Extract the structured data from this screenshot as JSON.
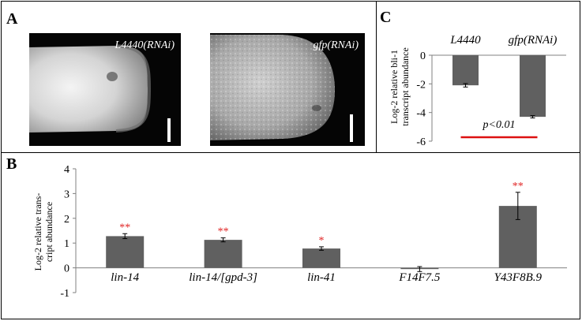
{
  "panels": {
    "a": {
      "letter": "A",
      "images": [
        {
          "label": "L4440(RNAi)"
        },
        {
          "label": "gfp(RNAi)"
        }
      ]
    },
    "b": {
      "letter": "B"
    },
    "c": {
      "letter": "C"
    }
  },
  "colors": {
    "bar": "#606060",
    "significance": "#e02020",
    "pvalue_line": "#dd1111",
    "axis": "#808080"
  },
  "chart_data": [
    {
      "panel": "C",
      "type": "bar",
      "categories": [
        "L4440",
        "gfp(RNAi)"
      ],
      "values": [
        -2.1,
        -4.3
      ],
      "errors": [
        0.12,
        0.08
      ],
      "ylabel": "Log-2 relative bli-1 transcript abundance",
      "ylabel_lines": [
        "Log-2 relative bli-1",
        "transcript abundance"
      ],
      "yticks": [
        0,
        -2,
        -4,
        -6
      ],
      "ylim": [
        -6,
        0
      ],
      "annotation": "p<0.01",
      "grid": false
    },
    {
      "panel": "B",
      "type": "bar",
      "categories": [
        "lin-14",
        "lin-14/[gpd-3]",
        "lin-41",
        "F14F7.5",
        "Y43F8B.9"
      ],
      "values": [
        1.28,
        1.13,
        0.78,
        -0.05,
        2.5
      ],
      "errors": [
        0.1,
        0.08,
        0.07,
        0.1,
        0.55
      ],
      "significance": [
        "**",
        "**",
        "*",
        "",
        "**"
      ],
      "ylabel": "Log-2 relative transcript abundance",
      "ylabel_lines": [
        "Log-2 relative trans-",
        "cript abundance"
      ],
      "yticks": [
        -1,
        0,
        1,
        2,
        3,
        4
      ],
      "ylim": [
        -1,
        4
      ],
      "grid": false
    }
  ]
}
